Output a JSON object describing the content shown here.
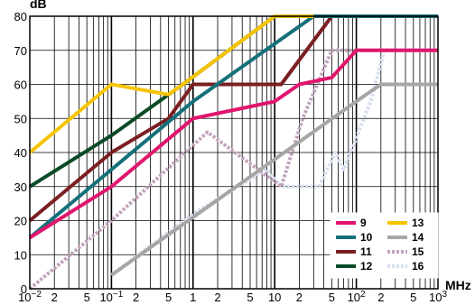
{
  "chart_data": {
    "type": "line",
    "title": "",
    "ylabel": "dB",
    "xlabel": "MHz",
    "xscale": "log",
    "xlim": [
      0.01,
      1000
    ],
    "ylim": [
      0,
      80
    ],
    "grid": true,
    "legend_position": "bottom-right",
    "y_ticks": [
      "0",
      "10",
      "20",
      "30",
      "40",
      "50",
      "60",
      "70",
      "80"
    ],
    "x_ticks": [
      {
        "value": 0.01,
        "base": "10",
        "exp": "−2"
      },
      {
        "value": 0.02,
        "label": "2"
      },
      {
        "value": 0.05,
        "label": "5"
      },
      {
        "value": 0.1,
        "base": "10",
        "exp": "−1"
      },
      {
        "value": 0.2,
        "label": "2"
      },
      {
        "value": 0.5,
        "label": "5"
      },
      {
        "value": 1,
        "label": "1"
      },
      {
        "value": 2,
        "label": "2"
      },
      {
        "value": 5,
        "label": "5"
      },
      {
        "value": 10,
        "label": "10"
      },
      {
        "value": 20,
        "label": "2"
      },
      {
        "value": 50,
        "label": "5"
      },
      {
        "value": 100,
        "base": "10",
        "exp": "2"
      },
      {
        "value": 200,
        "label": "2"
      },
      {
        "value": 500,
        "label": "5"
      },
      {
        "value": 1000,
        "base": "10",
        "exp": "3"
      }
    ],
    "series": [
      {
        "name": "16",
        "color": "#d6def0",
        "dashed": true,
        "points": [
          [
            0.1,
            4
          ],
          [
            1,
            22
          ],
          [
            8,
            35
          ],
          [
            12,
            30
          ],
          [
            35,
            30
          ],
          [
            55,
            40
          ],
          [
            70,
            35
          ],
          [
            150,
            55
          ],
          [
            220,
            70
          ],
          [
            1000,
            70
          ]
        ]
      },
      {
        "name": "15",
        "color": "#bfa3bc",
        "dashed": true,
        "points": [
          [
            0.01,
            0
          ],
          [
            0.1,
            20
          ],
          [
            1.5,
            46
          ],
          [
            12,
            30
          ],
          [
            22,
            50
          ],
          [
            50,
            70
          ],
          [
            1000,
            70
          ]
        ]
      },
      {
        "name": "14",
        "color": "#a6a6a6",
        "dashed": false,
        "points": [
          [
            0.1,
            4
          ],
          [
            100,
            55
          ],
          [
            200,
            60
          ],
          [
            1000,
            60
          ]
        ]
      },
      {
        "name": "12",
        "color": "#0b4a26",
        "dashed": false,
        "points": [
          [
            0.01,
            30
          ],
          [
            0.1,
            45
          ],
          [
            0.75,
            60
          ],
          [
            10,
            80
          ],
          [
            1000,
            80
          ]
        ]
      },
      {
        "name": "11",
        "color": "#7a1f22",
        "dashed": false,
        "points": [
          [
            0.01,
            20
          ],
          [
            0.1,
            40
          ],
          [
            0.5,
            50
          ],
          [
            1,
            60
          ],
          [
            12,
            60
          ],
          [
            50,
            80
          ],
          [
            1000,
            80
          ]
        ]
      },
      {
        "name": "10",
        "color": "#14707a",
        "dashed": false,
        "points": [
          [
            0.01,
            15
          ],
          [
            1,
            55
          ],
          [
            30,
            80
          ],
          [
            1000,
            80
          ]
        ]
      },
      {
        "name": "13",
        "color": "#f5c400",
        "dashed": false,
        "points": [
          [
            0.01,
            40
          ],
          [
            0.1,
            60
          ],
          [
            0.5,
            57
          ],
          [
            0.75,
            60
          ],
          [
            10,
            80
          ],
          [
            30,
            80
          ]
        ]
      },
      {
        "name": "9",
        "color": "#e0156e",
        "dashed": false,
        "points": [
          [
            0.01,
            15
          ],
          [
            0.1,
            30
          ],
          [
            1,
            50
          ],
          [
            10,
            55
          ],
          [
            20,
            60
          ],
          [
            50,
            62
          ],
          [
            100,
            70
          ],
          [
            1000,
            70
          ]
        ]
      }
    ],
    "legend": [
      {
        "name": "9",
        "color": "#e0156e",
        "dashed": false
      },
      {
        "name": "13",
        "color": "#f5c400",
        "dashed": false
      },
      {
        "name": "10",
        "color": "#14707a",
        "dashed": false
      },
      {
        "name": "14",
        "color": "#a6a6a6",
        "dashed": false
      },
      {
        "name": "11",
        "color": "#7a1f22",
        "dashed": false
      },
      {
        "name": "15",
        "color": "#bfa3bc",
        "dashed": true
      },
      {
        "name": "12",
        "color": "#0b4a26",
        "dashed": false
      },
      {
        "name": "16",
        "color": "#d6def0",
        "dashed": true
      }
    ]
  }
}
